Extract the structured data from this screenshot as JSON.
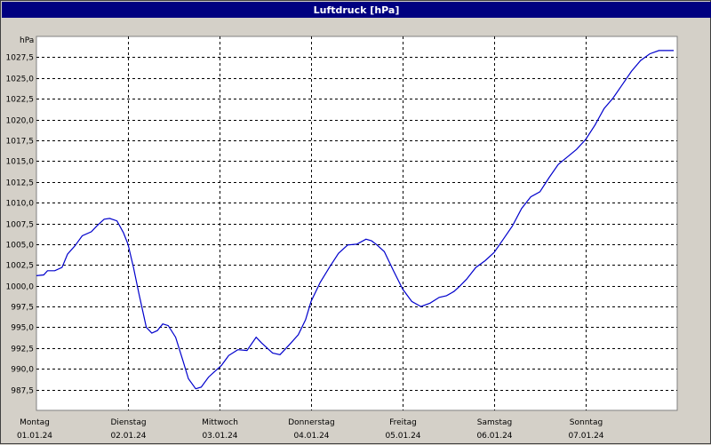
{
  "window": {
    "title": "Luftdruck [hPa]"
  },
  "colors": {
    "titlebar": "#000080",
    "line": "#0000cc",
    "plot_bg": "#ffffff",
    "frame_bg": "#d4d0c8"
  },
  "chart_data": {
    "type": "line",
    "title": "Luftdruck [hPa]",
    "yunit": "hPa",
    "ylim": [
      985.0,
      1030.0
    ],
    "xlim": [
      0,
      7
    ],
    "grid": true,
    "grid_style": "dashed",
    "yticks": [
      "987,5",
      "990,0",
      "992,5",
      "995,0",
      "997,5",
      "1000,0",
      "1002,5",
      "1005,0",
      "1007,5",
      "1010,0",
      "1012,5",
      "1015,0",
      "1017,5",
      "1020,0",
      "1022,5",
      "1025,0",
      "1027,5"
    ],
    "ytick_values": [
      987.5,
      990.0,
      992.5,
      995.0,
      997.5,
      1000.0,
      1002.5,
      1005.0,
      1007.5,
      1010.0,
      1012.5,
      1015.0,
      1017.5,
      1020.0,
      1022.5,
      1025.0,
      1027.5
    ],
    "xticks": [
      {
        "day": "Montag",
        "date": "01.01.24"
      },
      {
        "day": "Dienstag",
        "date": "02.01.24"
      },
      {
        "day": "Mittwoch",
        "date": "03.01.24"
      },
      {
        "day": "Donnerstag",
        "date": "04.01.24"
      },
      {
        "day": "Freitag",
        "date": "05.01.24"
      },
      {
        "day": "Samstag",
        "date": "06.01.24"
      },
      {
        "day": "Sonntag",
        "date": "07.01.24"
      }
    ],
    "series": [
      {
        "x": [
          0.0,
          0.08,
          0.12,
          0.2,
          0.28,
          0.34,
          0.42,
          0.5,
          0.6,
          0.66,
          0.74,
          0.8,
          0.88,
          0.95,
          1.0,
          1.06,
          1.12,
          1.2,
          1.26,
          1.32,
          1.38,
          1.44,
          1.52,
          1.6,
          1.66,
          1.74,
          1.8,
          1.88,
          1.96,
          2.02,
          2.1,
          2.2,
          2.3,
          2.4,
          2.46,
          2.52,
          2.58,
          2.66,
          2.72,
          2.78,
          2.86,
          2.94,
          3.0,
          3.1,
          3.2,
          3.3,
          3.4,
          3.5,
          3.6,
          3.66,
          3.72,
          3.8,
          3.9,
          4.0,
          4.1,
          4.2,
          4.3,
          4.4,
          4.48,
          4.56,
          4.62,
          4.7,
          4.8,
          4.9,
          5.0,
          5.1,
          5.2,
          5.3,
          5.4,
          5.5,
          5.6,
          5.7,
          5.8,
          5.9,
          6.0,
          6.1,
          6.2,
          6.3,
          6.4,
          6.5,
          6.6,
          6.7,
          6.8,
          6.9,
          6.98,
          7.0
        ],
        "y": [
          1001.2,
          1001.3,
          1001.8,
          1001.8,
          1002.2,
          1003.8,
          1004.8,
          1006.0,
          1006.5,
          1007.2,
          1008.0,
          1008.1,
          1007.8,
          1006.4,
          1005.0,
          1002.2,
          999.0,
          995.0,
          994.3,
          994.6,
          995.4,
          995.2,
          993.8,
          991.0,
          988.8,
          987.6,
          987.8,
          989.0,
          989.8,
          990.4,
          991.6,
          992.3,
          992.2,
          993.8,
          993.1,
          992.5,
          991.9,
          991.7,
          992.4,
          993.1,
          994.1,
          995.9,
          998.1,
          1000.4,
          1002.2,
          1003.9,
          1004.9,
          1005.0,
          1005.6,
          1005.4,
          1004.9,
          1004.1,
          1001.8,
          999.6,
          998.1,
          997.5,
          997.9,
          998.6,
          998.8,
          999.3,
          999.9,
          1000.8,
          1002.2,
          1003.0,
          1004.0,
          1005.6,
          1007.2,
          1009.3,
          1010.7,
          1011.3,
          1013.0,
          1014.6,
          1015.5,
          1016.4,
          1017.6,
          1019.3,
          1021.3,
          1022.6,
          1024.2,
          1025.8,
          1027.1,
          1027.9,
          1028.3,
          1028.3,
          1028.3,
          1028.3
        ]
      }
    ]
  }
}
